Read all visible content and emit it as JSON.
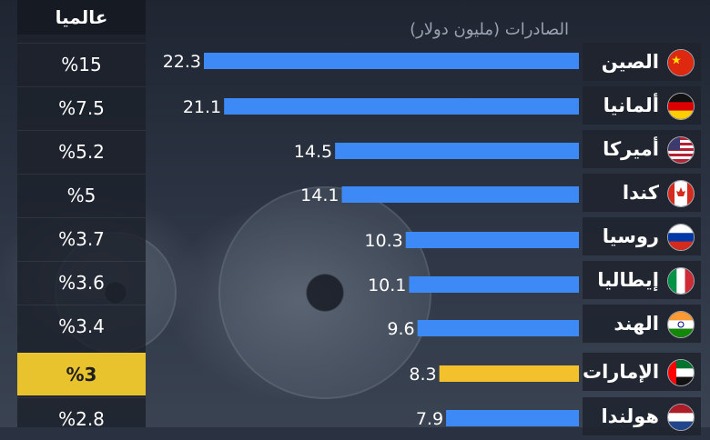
{
  "left_column": {
    "header": "عالميا",
    "values": [
      "%15",
      "%7.5",
      "%5.2",
      "%5",
      "%3.7",
      "%3.6",
      "%3.4",
      "%3",
      "%2.8"
    ],
    "highlight_index": 7
  },
  "chart_data": {
    "type": "bar",
    "orientation": "horizontal",
    "title": "الصادرات (مليون دولار)",
    "categories": [
      "الصين",
      "ألمانيا",
      "أميركا",
      "كندا",
      "روسيا",
      "إيطاليا",
      "الهند",
      "الإمارات",
      "هولندا"
    ],
    "values": [
      22.3,
      21.1,
      14.5,
      14.1,
      10.3,
      10.1,
      9.6,
      8.3,
      7.9
    ],
    "value_labels": [
      "22.3",
      "21.1",
      "14.5",
      "14.1",
      "10.3",
      "10.1",
      "9.6",
      "8.3",
      "7.9"
    ],
    "xlim": [
      0,
      22.3
    ],
    "grid": false,
    "legend": "none",
    "colors": {
      "default_bar": "#3d8af7",
      "highlight_bar": "#f3c12b",
      "highlight_index": 7
    },
    "flags": [
      "china-flag-icon",
      "germany-flag-icon",
      "usa-flag-icon",
      "canada-flag-icon",
      "russia-flag-icon",
      "italy-flag-icon",
      "india-flag-icon",
      "uae-flag-icon",
      "netherlands-flag-icon"
    ]
  }
}
